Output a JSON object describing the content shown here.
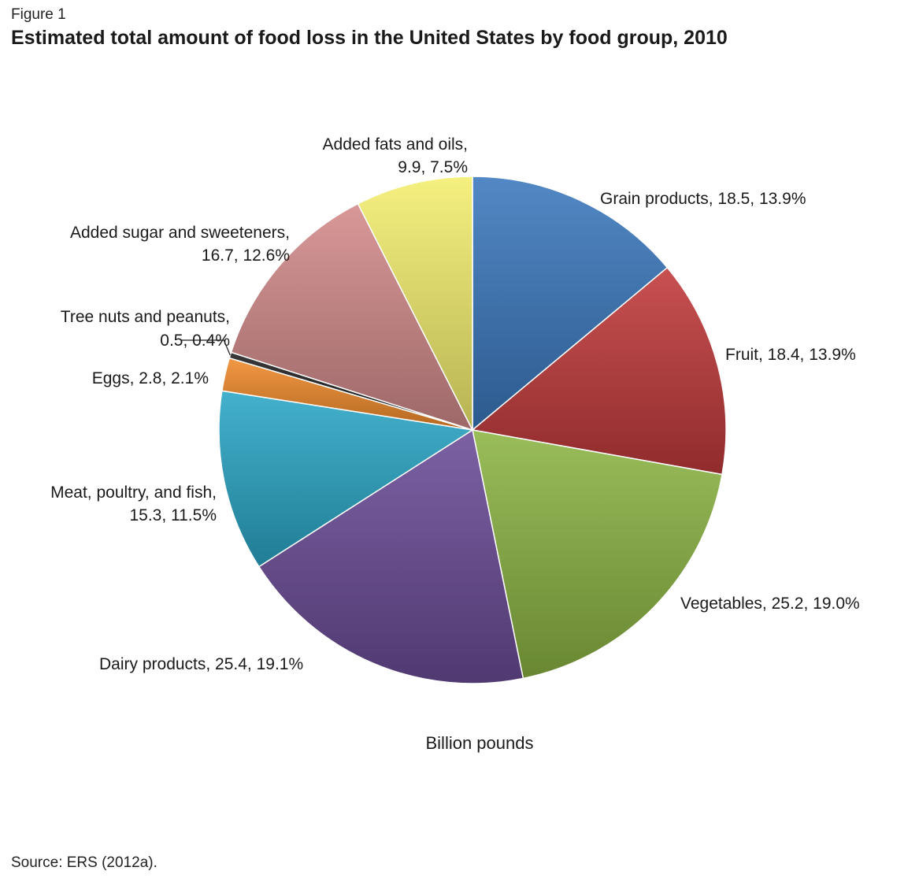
{
  "figure_label": "Figure 1",
  "title": "Estimated total amount of food loss in the United States by food group, 2010",
  "unit_label": "Billion pounds",
  "source": "Source: ERS (2012a).",
  "chart_data": {
    "type": "pie",
    "title": "Estimated total amount of food loss in the United States by food group, 2010",
    "unit": "Billion pounds",
    "start_angle_deg": 0,
    "direction": "clockwise",
    "slices": [
      {
        "name": "Grain products",
        "value": 18.5,
        "percent": "13.9%",
        "label_lines": [
          "Grain products, 18.5, 13.9%"
        ],
        "color": "#3a78bd"
      },
      {
        "name": "Fruit",
        "value": 18.4,
        "percent": "13.9%",
        "label_lines": [
          "Fruit, 18.4, 13.9%"
        ],
        "color": "#c0393a"
      },
      {
        "name": "Vegetables",
        "value": 25.2,
        "percent": "19.0%",
        "label_lines": [
          "Vegetables, 25.2, 19.0%"
        ],
        "color": "#8cb443"
      },
      {
        "name": "Dairy products",
        "value": 25.4,
        "percent": "19.1%",
        "label_lines": [
          "Dairy products, 25.4, 19.1%"
        ],
        "color": "#6a4c96"
      },
      {
        "name": "Meat, poultry, and fish",
        "value": 15.3,
        "percent": "11.5%",
        "label_lines": [
          "Meat, poultry, and fish,",
          "15.3, 11.5%"
        ],
        "color": "#2aa6c6"
      },
      {
        "name": "Eggs",
        "value": 2.8,
        "percent": "2.1%",
        "label_lines": [
          "Eggs, 2.8, 2.1%"
        ],
        "color": "#f08a2a"
      },
      {
        "name": "Tree nuts and peanuts",
        "value": 0.5,
        "percent": "0.4%",
        "label_lines": [
          "Tree nuts and peanuts,",
          "0.5, 0.4%"
        ],
        "color": "#1f1f1f"
      },
      {
        "name": "Added sugar and sweeteners",
        "value": 16.7,
        "percent": "12.6%",
        "label_lines": [
          "Added sugar and sweeteners,",
          "16.7, 12.6%"
        ],
        "color": "#d38a8a"
      },
      {
        "name": "Added fats and oils",
        "value": 9.9,
        "percent": "7.5%",
        "label_lines": [
          "Added fats and oils,",
          "9.9, 7.5%"
        ],
        "color": "#f4ee6e"
      }
    ]
  }
}
